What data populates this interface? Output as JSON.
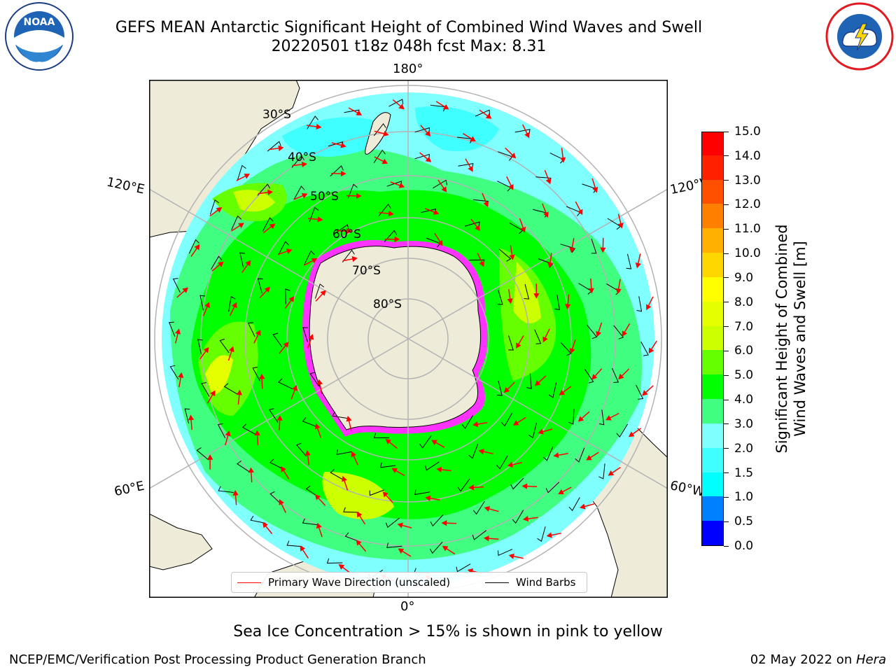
{
  "title": {
    "line1": "GEFS MEAN Antarctic Significant Height of Combined Wind Waves and Swell",
    "line2": "20220501 t18z 048h fcst   Max: 8.31"
  },
  "logos": {
    "noaa_text": "NOAA",
    "noaa_ring": "NATIONAL OCEANIC AND ATMOSPHERIC ADMINISTRATION · U.S. DEPARTMENT OF COMMERCE",
    "nws_ring": "NATIONAL WEATHER SERVICE"
  },
  "map": {
    "projection": "south polar stereographic",
    "lon_labels": {
      "top": "180°",
      "upper_left": "120°E",
      "upper_right": "120°W",
      "lower_left": "60°E",
      "lower_right": "60°W",
      "bottom": "0°"
    },
    "lat_labels": [
      "30°S",
      "40°S",
      "50°S",
      "60°S",
      "70°S",
      "80°S"
    ],
    "max_value": 8.31,
    "colors": {
      "land": "#efebd9",
      "sea_ice": "#ff33ff",
      "grid": "#b3b3b3",
      "wind_barb": "#000000",
      "wave_arrow": "#ff0000"
    }
  },
  "colorbar": {
    "label_line1": "Significant Height of Combined",
    "label_line2": "Wind Waves and Swell [m]",
    "ticks": [
      "0.0",
      "0.5",
      "1.0",
      "1.5",
      "2.0",
      "3.0",
      "4.0",
      "5.0",
      "6.0",
      "7.0",
      "8.0",
      "9.0",
      "10.0",
      "11.0",
      "12.0",
      "13.0",
      "14.0",
      "15.0"
    ],
    "colors": [
      "#0000ff",
      "#0080ff",
      "#00ffff",
      "#40ffff",
      "#80ffff",
      "#40ff80",
      "#00ff00",
      "#66ff00",
      "#ccff00",
      "#e6ff00",
      "#ffff00",
      "#ffd700",
      "#ffb000",
      "#ff8000",
      "#ff5000",
      "#ff2000",
      "#ff0000"
    ]
  },
  "legend": {
    "wave_label": "Primary Wave Direction (unscaled)",
    "wind_label": "Wind Barbs"
  },
  "note": "Sea Ice Concentration > 15% is shown in pink to yellow",
  "footer": {
    "left": "NCEP/EMC/Verification Post Processing Product Generation Branch",
    "right_date": "02 May 2022 on ",
    "right_host": "Hera"
  }
}
